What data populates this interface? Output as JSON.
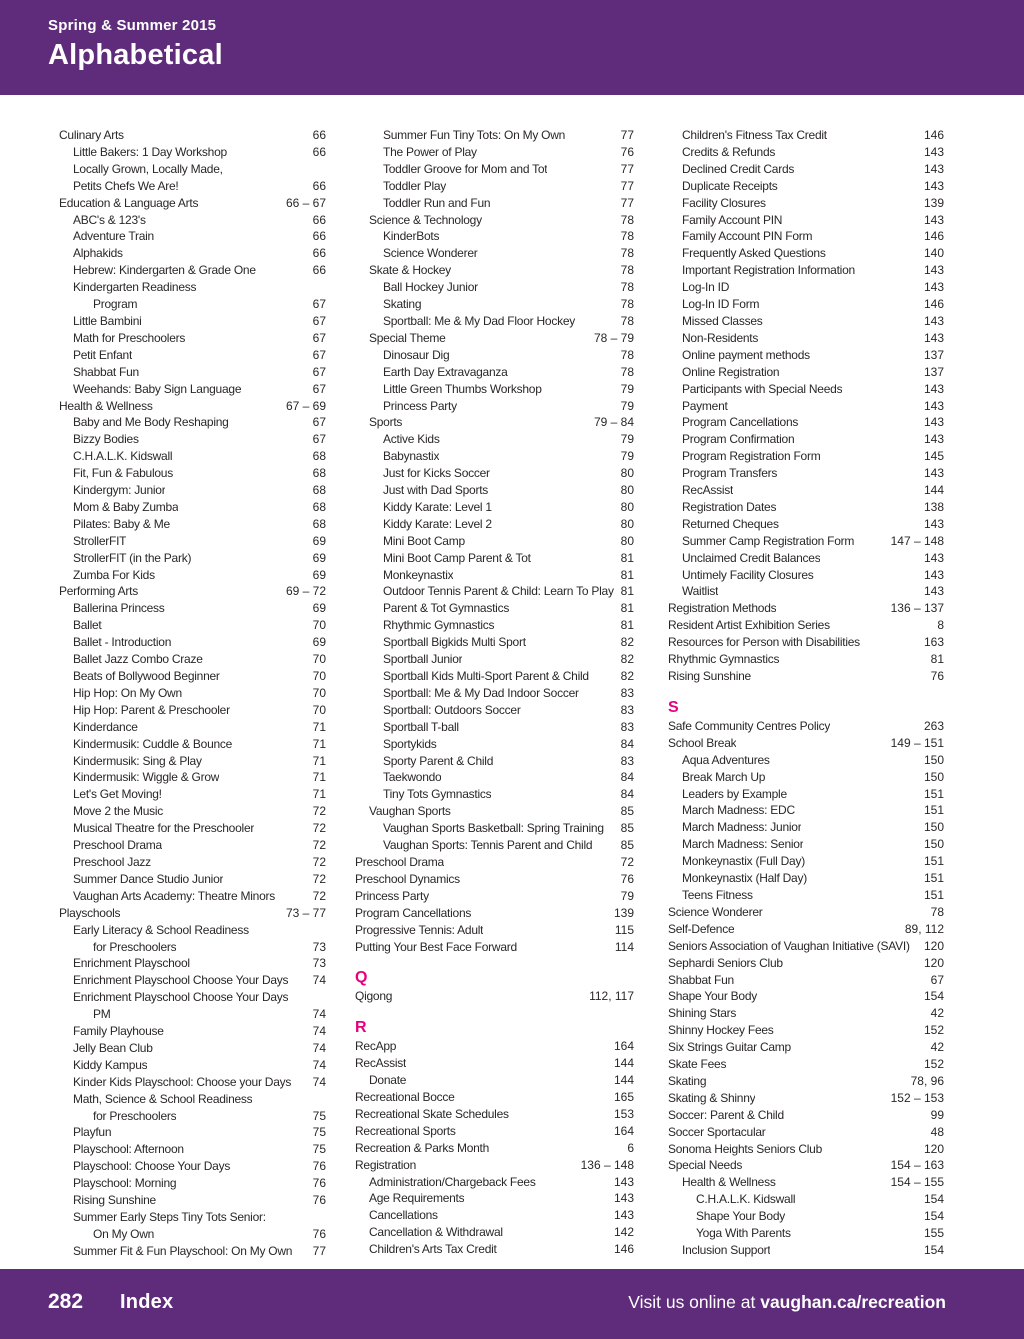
{
  "header": {
    "eyebrow": "Spring & Summer 2015",
    "title": "Alphabetical"
  },
  "footer": {
    "page_number": "282",
    "section_label": "Index",
    "visit_text": "Visit us online at ",
    "url": "vaughan.ca/recreation"
  },
  "colors": {
    "purple": "#5e2c7a",
    "pink": "#e6007e",
    "text": "#2b2727"
  },
  "columns": [
    [
      {
        "t": "Culinary Arts",
        "p": "66",
        "l": 1
      },
      {
        "t": "Little Bakers: 1 Day Workshop",
        "p": "66",
        "l": 2
      },
      {
        "t": "Locally Grown, Locally Made,",
        "p": "",
        "l": 2
      },
      {
        "t": "Petits Chefs We Are!",
        "p": "66",
        "l": 2
      },
      {
        "t": "Education & Language Arts",
        "p": "66 – 67",
        "l": 1
      },
      {
        "t": "ABC's & 123's",
        "p": "66",
        "l": 2
      },
      {
        "t": "Adventure Train",
        "p": "66",
        "l": 2
      },
      {
        "t": "Alphakids",
        "p": "66",
        "l": 2
      },
      {
        "t": "Hebrew: Kindergarten & Grade One",
        "p": "66",
        "l": 2
      },
      {
        "t": "Kindergarten Readiness",
        "p": "",
        "l": 2
      },
      {
        "t": "Program",
        "p": "67",
        "l": 3
      },
      {
        "t": "Little Bambini",
        "p": "67",
        "l": 2
      },
      {
        "t": "Math for Preschoolers",
        "p": "67",
        "l": 2
      },
      {
        "t": "Petit Enfant",
        "p": "67",
        "l": 2
      },
      {
        "t": "Shabbat Fun",
        "p": "67",
        "l": 2
      },
      {
        "t": "Weehands: Baby Sign Language",
        "p": "67",
        "l": 2
      },
      {
        "t": "Health & Wellness",
        "p": "67 – 69",
        "l": 1
      },
      {
        "t": "Baby and Me Body Reshaping",
        "p": "67",
        "l": 2
      },
      {
        "t": "Bizzy Bodies",
        "p": "67",
        "l": 2
      },
      {
        "t": "C.H.A.L.K. Kidswall",
        "p": "68",
        "l": 2
      },
      {
        "t": "Fit, Fun & Fabulous",
        "p": "68",
        "l": 2
      },
      {
        "t": "Kindergym: Junior",
        "p": "68",
        "l": 2
      },
      {
        "t": "Mom & Baby Zumba",
        "p": "68",
        "l": 2
      },
      {
        "t": "Pilates: Baby & Me",
        "p": "68",
        "l": 2
      },
      {
        "t": "StrollerFIT",
        "p": "69",
        "l": 2
      },
      {
        "t": "StrollerFIT (in the Park)",
        "p": "69",
        "l": 2
      },
      {
        "t": "Zumba For Kids",
        "p": "69",
        "l": 2
      },
      {
        "t": "Performing Arts",
        "p": "69 – 72",
        "l": 1
      },
      {
        "t": "Ballerina Princess",
        "p": "69",
        "l": 2
      },
      {
        "t": "Ballet",
        "p": "70",
        "l": 2
      },
      {
        "t": "Ballet - Introduction",
        "p": "69",
        "l": 2
      },
      {
        "t": "Ballet Jazz Combo Craze",
        "p": "70",
        "l": 2
      },
      {
        "t": "Beats of Bollywood Beginner",
        "p": "70",
        "l": 2
      },
      {
        "t": "Hip Hop: On My Own",
        "p": "70",
        "l": 2
      },
      {
        "t": "Hip Hop: Parent & Preschooler",
        "p": "70",
        "l": 2
      },
      {
        "t": "Kinderdance",
        "p": "71",
        "l": 2
      },
      {
        "t": "Kindermusik: Cuddle & Bounce",
        "p": "71",
        "l": 2
      },
      {
        "t": "Kindermusik: Sing & Play",
        "p": "71",
        "l": 2
      },
      {
        "t": "Kindermusik: Wiggle & Grow",
        "p": "71",
        "l": 2
      },
      {
        "t": "Let's Get Moving!",
        "p": "71",
        "l": 2
      },
      {
        "t": "Move 2 the Music",
        "p": "72",
        "l": 2
      },
      {
        "t": "Musical Theatre for the Preschooler",
        "p": "72",
        "l": 2
      },
      {
        "t": "Preschool Drama",
        "p": "72",
        "l": 2
      },
      {
        "t": "Preschool Jazz",
        "p": "72",
        "l": 2
      },
      {
        "t": "Summer Dance Studio Junior",
        "p": "72",
        "l": 2
      },
      {
        "t": "Vaughan Arts Academy: Theatre Minors",
        "p": "72",
        "l": 2
      },
      {
        "t": "Playschools",
        "p": "73 – 77",
        "l": 1
      },
      {
        "t": "Early Literacy & School Readiness",
        "p": "",
        "l": 2
      },
      {
        "t": "for Preschoolers",
        "p": "73",
        "l": 3
      },
      {
        "t": "Enrichment Playschool",
        "p": "73",
        "l": 2
      },
      {
        "t": "Enrichment Playschool Choose Your Days",
        "p": "74",
        "l": 2
      },
      {
        "t": "Enrichment Playschool Choose Your Days",
        "p": "",
        "l": 2
      },
      {
        "t": "PM",
        "p": "74",
        "l": 3
      },
      {
        "t": "Family Playhouse",
        "p": "74",
        "l": 2
      },
      {
        "t": "Jelly Bean Club",
        "p": "74",
        "l": 2
      },
      {
        "t": "Kiddy Kampus",
        "p": "74",
        "l": 2
      },
      {
        "t": "Kinder Kids Playschool: Choose your Days",
        "p": "74",
        "l": 2
      },
      {
        "t": "Math, Science & School Readiness",
        "p": "",
        "l": 2
      },
      {
        "t": "for Preschoolers",
        "p": "75",
        "l": 3
      },
      {
        "t": "Playfun",
        "p": "75",
        "l": 2
      },
      {
        "t": "Playschool: Afternoon",
        "p": "75",
        "l": 2
      },
      {
        "t": "Playschool: Choose Your Days",
        "p": "76",
        "l": 2
      },
      {
        "t": "Playschool: Morning",
        "p": "76",
        "l": 2
      },
      {
        "t": "Rising Sunshine",
        "p": "76",
        "l": 2
      },
      {
        "t": "Summer Early Steps Tiny Tots Senior:",
        "p": "",
        "l": 2
      },
      {
        "t": "On My Own",
        "p": "76",
        "l": 3
      },
      {
        "t": "Summer Fit & Fun Playschool: On My Own",
        "p": "77",
        "l": 2
      }
    ],
    [
      {
        "t": "Summer Fun Tiny Tots: On My Own",
        "p": "77",
        "l": 2
      },
      {
        "t": "The Power of Play",
        "p": "76",
        "l": 2
      },
      {
        "t": "Toddler Groove for Mom and Tot",
        "p": "77",
        "l": 2
      },
      {
        "t": "Toddler Play",
        "p": "77",
        "l": 2
      },
      {
        "t": "Toddler Run and Fun",
        "p": "77",
        "l": 2
      },
      {
        "t": "Science & Technology",
        "p": "78",
        "l": 1
      },
      {
        "t": "KinderBots",
        "p": "78",
        "l": 2
      },
      {
        "t": "Science Wonderer",
        "p": "78",
        "l": 2
      },
      {
        "t": "Skate & Hockey",
        "p": "78",
        "l": 1
      },
      {
        "t": "Ball Hockey Junior",
        "p": "78",
        "l": 2
      },
      {
        "t": "Skating",
        "p": "78",
        "l": 2
      },
      {
        "t": "Sportball: Me & My Dad Floor Hockey",
        "p": "78",
        "l": 2
      },
      {
        "t": "Special Theme",
        "p": "78 – 79",
        "l": 1
      },
      {
        "t": "Dinosaur Dig",
        "p": "78",
        "l": 2
      },
      {
        "t": "Earth Day Extravaganza",
        "p": "78",
        "l": 2
      },
      {
        "t": "Little Green Thumbs Workshop",
        "p": "79",
        "l": 2
      },
      {
        "t": "Princess Party",
        "p": "79",
        "l": 2
      },
      {
        "t": "Sports",
        "p": "79 – 84",
        "l": 1
      },
      {
        "t": "Active Kids",
        "p": "79",
        "l": 2
      },
      {
        "t": "Babynastix",
        "p": "79",
        "l": 2
      },
      {
        "t": "Just for Kicks Soccer",
        "p": "80",
        "l": 2
      },
      {
        "t": "Just with Dad Sports",
        "p": "80",
        "l": 2
      },
      {
        "t": "Kiddy Karate: Level 1",
        "p": "80",
        "l": 2
      },
      {
        "t": "Kiddy Karate: Level 2",
        "p": "80",
        "l": 2
      },
      {
        "t": "Mini Boot Camp",
        "p": "80",
        "l": 2
      },
      {
        "t": "Mini Boot Camp Parent & Tot",
        "p": "81",
        "l": 2
      },
      {
        "t": "Monkeynastix",
        "p": "81",
        "l": 2
      },
      {
        "t": "Outdoor Tennis Parent & Child: Learn To Play",
        "p": "81",
        "l": 2
      },
      {
        "t": "Parent & Tot Gymnastics",
        "p": "81",
        "l": 2
      },
      {
        "t": "Rhythmic Gymnastics",
        "p": "81",
        "l": 2
      },
      {
        "t": "Sportball Bigkids Multi Sport",
        "p": "82",
        "l": 2
      },
      {
        "t": "Sportball Junior",
        "p": "82",
        "l": 2
      },
      {
        "t": "Sportball Kids Multi-Sport Parent & Child",
        "p": "82",
        "l": 2
      },
      {
        "t": "Sportball: Me & My Dad Indoor Soccer",
        "p": "83",
        "l": 2
      },
      {
        "t": "Sportball: Outdoors Soccer",
        "p": "83",
        "l": 2
      },
      {
        "t": "Sportball T-ball",
        "p": "83",
        "l": 2
      },
      {
        "t": "Sportykids",
        "p": "84",
        "l": 2
      },
      {
        "t": "Sporty Parent & Child",
        "p": "83",
        "l": 2
      },
      {
        "t": "Taekwondo",
        "p": "84",
        "l": 2
      },
      {
        "t": "Tiny Tots Gymnastics",
        "p": "84",
        "l": 2
      },
      {
        "t": "Vaughan Sports",
        "p": "85",
        "l": 1
      },
      {
        "t": "Vaughan Sports Basketball: Spring Training",
        "p": "85",
        "l": 2
      },
      {
        "t": "Vaughan Sports: Tennis Parent and Child",
        "p": "85",
        "l": 2
      },
      {
        "t": "Preschool Drama",
        "p": "72",
        "l": 0
      },
      {
        "t": "Preschool Dynamics",
        "p": "76",
        "l": 0
      },
      {
        "t": "Princess Party",
        "p": "79",
        "l": 0
      },
      {
        "t": "Program Cancellations",
        "p": "139",
        "l": 0
      },
      {
        "t": "Progressive Tennis: Adult",
        "p": "115",
        "l": 0
      },
      {
        "t": "Putting Your Best Face Forward",
        "p": "114",
        "l": 0
      },
      {
        "t": "Q",
        "type": "letter"
      },
      {
        "t": "Qigong",
        "p": "112, 117",
        "l": 0
      },
      {
        "t": "R",
        "type": "letter"
      },
      {
        "t": "RecApp",
        "p": "164",
        "l": 0
      },
      {
        "t": "RecAssist",
        "p": "144",
        "l": 0
      },
      {
        "t": "Donate",
        "p": "144",
        "l": 1
      },
      {
        "t": "Recreational Bocce",
        "p": "165",
        "l": 0
      },
      {
        "t": "Recreational Skate Schedules",
        "p": "153",
        "l": 0
      },
      {
        "t": "Recreational Sports",
        "p": "164",
        "l": 0
      },
      {
        "t": "Recreation & Parks Month",
        "p": "6",
        "l": 0
      },
      {
        "t": "Registration",
        "p": "136 – 148",
        "l": 0
      },
      {
        "t": "Administration/Chargeback Fees",
        "p": "143",
        "l": 1
      },
      {
        "t": "Age Requirements",
        "p": "143",
        "l": 1
      },
      {
        "t": "Cancellations",
        "p": "143",
        "l": 1
      },
      {
        "t": "Cancellation & Withdrawal",
        "p": "142",
        "l": 1
      },
      {
        "t": "Children's Arts Tax Credit",
        "p": "146",
        "l": 1
      }
    ],
    [
      {
        "t": "Children's Fitness Tax Credit",
        "p": "146",
        "l": 1
      },
      {
        "t": "Credits & Refunds",
        "p": "143",
        "l": 1
      },
      {
        "t": "Declined Credit Cards",
        "p": "143",
        "l": 1
      },
      {
        "t": "Duplicate Receipts",
        "p": "143",
        "l": 1
      },
      {
        "t": "Facility Closures",
        "p": "139",
        "l": 1
      },
      {
        "t": "Family Account PIN",
        "p": "143",
        "l": 1
      },
      {
        "t": "Family Account PIN Form",
        "p": "146",
        "l": 1
      },
      {
        "t": "Frequently Asked Questions",
        "p": "140",
        "l": 1
      },
      {
        "t": "Important Registration Information",
        "p": "143",
        "l": 1
      },
      {
        "t": "Log-In ID",
        "p": "143",
        "l": 1
      },
      {
        "t": "Log-In ID Form",
        "p": "146",
        "l": 1
      },
      {
        "t": "Missed Classes",
        "p": "143",
        "l": 1
      },
      {
        "t": "Non-Residents",
        "p": "143",
        "l": 1
      },
      {
        "t": "Online payment methods",
        "p": "137",
        "l": 1
      },
      {
        "t": "Online Registration",
        "p": "137",
        "l": 1
      },
      {
        "t": "Participants with Special Needs",
        "p": "143",
        "l": 1
      },
      {
        "t": "Payment",
        "p": "143",
        "l": 1
      },
      {
        "t": "Program Cancellations",
        "p": "143",
        "l": 1
      },
      {
        "t": "Program Confirmation",
        "p": "143",
        "l": 1
      },
      {
        "t": "Program Registration Form",
        "p": "145",
        "l": 1
      },
      {
        "t": "Program Transfers",
        "p": "143",
        "l": 1
      },
      {
        "t": "RecAssist",
        "p": "144",
        "l": 1
      },
      {
        "t": "Registration Dates",
        "p": "138",
        "l": 1
      },
      {
        "t": "Returned Cheques",
        "p": "143",
        "l": 1
      },
      {
        "t": "Summer Camp Registration Form",
        "p": "147 – 148",
        "l": 1
      },
      {
        "t": "Unclaimed Credit Balances",
        "p": "143",
        "l": 1
      },
      {
        "t": "Untimely Facility Closures",
        "p": "143",
        "l": 1
      },
      {
        "t": "Waitlist",
        "p": "143",
        "l": 1
      },
      {
        "t": "Registration Methods",
        "p": "136 – 137",
        "l": 0
      },
      {
        "t": "Resident Artist Exhibition Series",
        "p": "8",
        "l": 0
      },
      {
        "t": "Resources for Person with Disabilities",
        "p": "163",
        "l": 0
      },
      {
        "t": "Rhythmic Gymnastics",
        "p": "81",
        "l": 0
      },
      {
        "t": "Rising Sunshine",
        "p": "76",
        "l": 0
      },
      {
        "t": "S",
        "type": "letter"
      },
      {
        "t": "Safe Community Centres Policy",
        "p": "263",
        "l": 0
      },
      {
        "t": "School Break",
        "p": "149 – 151",
        "l": 0
      },
      {
        "t": "Aqua Adventures",
        "p": "150",
        "l": 1
      },
      {
        "t": "Break March Up",
        "p": "150",
        "l": 1
      },
      {
        "t": "Leaders by Example",
        "p": "151",
        "l": 1
      },
      {
        "t": "March Madness: EDC",
        "p": "151",
        "l": 1
      },
      {
        "t": "March Madness: Junior",
        "p": "150",
        "l": 1
      },
      {
        "t": "March Madness: Senior",
        "p": "150",
        "l": 1
      },
      {
        "t": "Monkeynastix (Full Day)",
        "p": "151",
        "l": 1
      },
      {
        "t": "Monkeynastix (Half Day)",
        "p": "151",
        "l": 1
      },
      {
        "t": "Teens Fitness",
        "p": "151",
        "l": 1
      },
      {
        "t": "Science Wonderer",
        "p": "78",
        "l": 0
      },
      {
        "t": "Self-Defence",
        "p": "89, 112",
        "l": 0
      },
      {
        "t": "Seniors Association of Vaughan Initiative (SAVI)",
        "p": "120",
        "l": 0
      },
      {
        "t": "Sephardi Seniors Club",
        "p": "120",
        "l": 0
      },
      {
        "t": "Shabbat Fun",
        "p": "67",
        "l": 0
      },
      {
        "t": "Shape Your Body",
        "p": "154",
        "l": 0
      },
      {
        "t": "Shining Stars",
        "p": "42",
        "l": 0
      },
      {
        "t": "Shinny Hockey Fees",
        "p": "152",
        "l": 0
      },
      {
        "t": "Six Strings Guitar Camp",
        "p": "42",
        "l": 0
      },
      {
        "t": "Skate Fees",
        "p": "152",
        "l": 0
      },
      {
        "t": "Skating",
        "p": "78, 96",
        "l": 0
      },
      {
        "t": "Skating & Shinny",
        "p": "152 – 153",
        "l": 0
      },
      {
        "t": "Soccer: Parent & Child",
        "p": "99",
        "l": 0
      },
      {
        "t": "Soccer Sportacular",
        "p": "48",
        "l": 0
      },
      {
        "t": "Sonoma Heights Seniors Club",
        "p": "120",
        "l": 0
      },
      {
        "t": "Special Needs",
        "p": "154 – 163",
        "l": 0
      },
      {
        "t": "Health & Wellness",
        "p": "154 – 155",
        "l": 1
      },
      {
        "t": "C.H.A.L.K. Kidswall",
        "p": "154",
        "l": 2
      },
      {
        "t": "Shape Your Body",
        "p": "154",
        "l": 2
      },
      {
        "t": "Yoga With Parents",
        "p": "155",
        "l": 2
      },
      {
        "t": "Inclusion Support",
        "p": "154",
        "l": 1
      }
    ]
  ]
}
